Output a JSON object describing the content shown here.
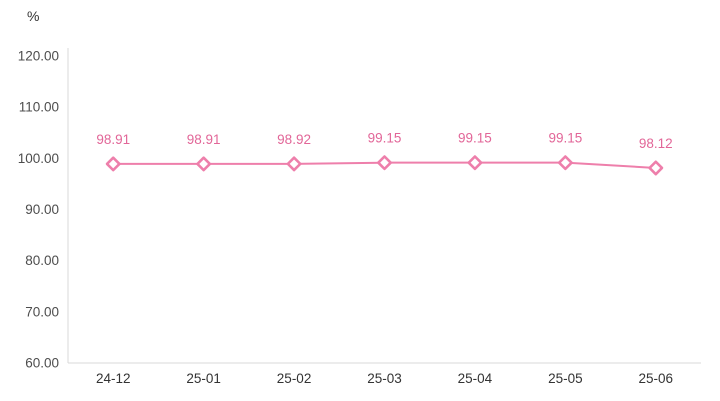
{
  "unit_label": "%",
  "colors": {
    "line": "#ee7fab",
    "marker_stroke": "#ee7fab",
    "marker_fill": "#ffffff",
    "data_label": "#e26698",
    "tick_label": "#4d4d4d",
    "axis_line": "#d9d9d9",
    "background": "#ffffff"
  },
  "chart_data": {
    "type": "line",
    "title": "",
    "xlabel": "",
    "ylabel": "%",
    "categories": [
      "24-12",
      "25-01",
      "25-02",
      "25-03",
      "25-04",
      "25-05",
      "25-06"
    ],
    "values": [
      98.91,
      98.91,
      98.92,
      99.15,
      99.15,
      99.15,
      98.12
    ],
    "data_labels": [
      "98.91",
      "98.91",
      "98.92",
      "99.15",
      "99.15",
      "99.15",
      "98.12"
    ],
    "ylim": [
      60,
      120
    ],
    "y_ticks": [
      60,
      70,
      80,
      90,
      100,
      110,
      120
    ],
    "y_tick_labels": [
      "60.00",
      "70.00",
      "80.00",
      "90.00",
      "100.00",
      "110.00",
      "120.00"
    ],
    "grid": false,
    "legend_position": "none",
    "marker": "open-diamond"
  }
}
